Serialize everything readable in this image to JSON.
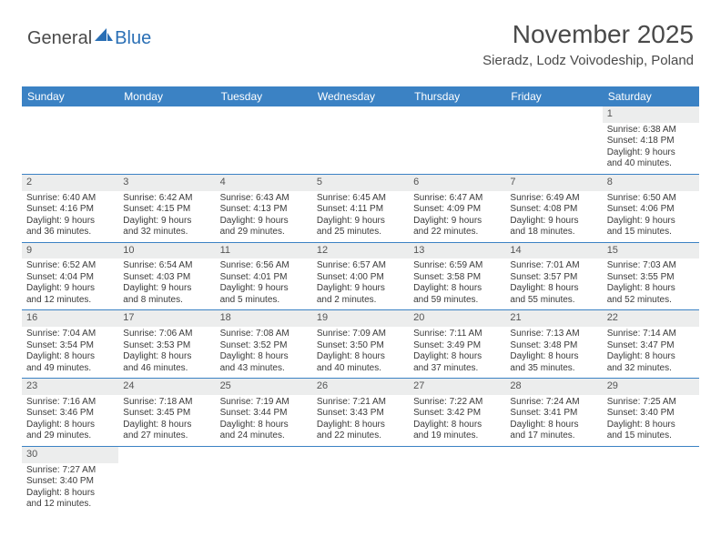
{
  "branding": {
    "logo_general": "General",
    "logo_blue": "Blue",
    "logo_color_text": "#4a4a4a",
    "logo_color_accent": "#2a6fb5"
  },
  "header": {
    "month_title": "November 2025",
    "location": "Sieradz, Lodz Voivodeship, Poland"
  },
  "style": {
    "header_bg": "#3b82c4",
    "header_fg": "#ffffff",
    "daynum_bg": "#eceded",
    "cell_text": "#3a3a3a",
    "border_color": "#3b82c4",
    "body_font_size": 10,
    "header_font_size": 12,
    "title_font_size": 28,
    "location_font_size": 15
  },
  "day_names": [
    "Sunday",
    "Monday",
    "Tuesday",
    "Wednesday",
    "Thursday",
    "Friday",
    "Saturday"
  ],
  "weeks": [
    [
      null,
      null,
      null,
      null,
      null,
      null,
      {
        "n": "1",
        "sunrise": "Sunrise: 6:38 AM",
        "sunset": "Sunset: 4:18 PM",
        "day1": "Daylight: 9 hours",
        "day2": "and 40 minutes."
      }
    ],
    [
      {
        "n": "2",
        "sunrise": "Sunrise: 6:40 AM",
        "sunset": "Sunset: 4:16 PM",
        "day1": "Daylight: 9 hours",
        "day2": "and 36 minutes."
      },
      {
        "n": "3",
        "sunrise": "Sunrise: 6:42 AM",
        "sunset": "Sunset: 4:15 PM",
        "day1": "Daylight: 9 hours",
        "day2": "and 32 minutes."
      },
      {
        "n": "4",
        "sunrise": "Sunrise: 6:43 AM",
        "sunset": "Sunset: 4:13 PM",
        "day1": "Daylight: 9 hours",
        "day2": "and 29 minutes."
      },
      {
        "n": "5",
        "sunrise": "Sunrise: 6:45 AM",
        "sunset": "Sunset: 4:11 PM",
        "day1": "Daylight: 9 hours",
        "day2": "and 25 minutes."
      },
      {
        "n": "6",
        "sunrise": "Sunrise: 6:47 AM",
        "sunset": "Sunset: 4:09 PM",
        "day1": "Daylight: 9 hours",
        "day2": "and 22 minutes."
      },
      {
        "n": "7",
        "sunrise": "Sunrise: 6:49 AM",
        "sunset": "Sunset: 4:08 PM",
        "day1": "Daylight: 9 hours",
        "day2": "and 18 minutes."
      },
      {
        "n": "8",
        "sunrise": "Sunrise: 6:50 AM",
        "sunset": "Sunset: 4:06 PM",
        "day1": "Daylight: 9 hours",
        "day2": "and 15 minutes."
      }
    ],
    [
      {
        "n": "9",
        "sunrise": "Sunrise: 6:52 AM",
        "sunset": "Sunset: 4:04 PM",
        "day1": "Daylight: 9 hours",
        "day2": "and 12 minutes."
      },
      {
        "n": "10",
        "sunrise": "Sunrise: 6:54 AM",
        "sunset": "Sunset: 4:03 PM",
        "day1": "Daylight: 9 hours",
        "day2": "and 8 minutes."
      },
      {
        "n": "11",
        "sunrise": "Sunrise: 6:56 AM",
        "sunset": "Sunset: 4:01 PM",
        "day1": "Daylight: 9 hours",
        "day2": "and 5 minutes."
      },
      {
        "n": "12",
        "sunrise": "Sunrise: 6:57 AM",
        "sunset": "Sunset: 4:00 PM",
        "day1": "Daylight: 9 hours",
        "day2": "and 2 minutes."
      },
      {
        "n": "13",
        "sunrise": "Sunrise: 6:59 AM",
        "sunset": "Sunset: 3:58 PM",
        "day1": "Daylight: 8 hours",
        "day2": "and 59 minutes."
      },
      {
        "n": "14",
        "sunrise": "Sunrise: 7:01 AM",
        "sunset": "Sunset: 3:57 PM",
        "day1": "Daylight: 8 hours",
        "day2": "and 55 minutes."
      },
      {
        "n": "15",
        "sunrise": "Sunrise: 7:03 AM",
        "sunset": "Sunset: 3:55 PM",
        "day1": "Daylight: 8 hours",
        "day2": "and 52 minutes."
      }
    ],
    [
      {
        "n": "16",
        "sunrise": "Sunrise: 7:04 AM",
        "sunset": "Sunset: 3:54 PM",
        "day1": "Daylight: 8 hours",
        "day2": "and 49 minutes."
      },
      {
        "n": "17",
        "sunrise": "Sunrise: 7:06 AM",
        "sunset": "Sunset: 3:53 PM",
        "day1": "Daylight: 8 hours",
        "day2": "and 46 minutes."
      },
      {
        "n": "18",
        "sunrise": "Sunrise: 7:08 AM",
        "sunset": "Sunset: 3:52 PM",
        "day1": "Daylight: 8 hours",
        "day2": "and 43 minutes."
      },
      {
        "n": "19",
        "sunrise": "Sunrise: 7:09 AM",
        "sunset": "Sunset: 3:50 PM",
        "day1": "Daylight: 8 hours",
        "day2": "and 40 minutes."
      },
      {
        "n": "20",
        "sunrise": "Sunrise: 7:11 AM",
        "sunset": "Sunset: 3:49 PM",
        "day1": "Daylight: 8 hours",
        "day2": "and 37 minutes."
      },
      {
        "n": "21",
        "sunrise": "Sunrise: 7:13 AM",
        "sunset": "Sunset: 3:48 PM",
        "day1": "Daylight: 8 hours",
        "day2": "and 35 minutes."
      },
      {
        "n": "22",
        "sunrise": "Sunrise: 7:14 AM",
        "sunset": "Sunset: 3:47 PM",
        "day1": "Daylight: 8 hours",
        "day2": "and 32 minutes."
      }
    ],
    [
      {
        "n": "23",
        "sunrise": "Sunrise: 7:16 AM",
        "sunset": "Sunset: 3:46 PM",
        "day1": "Daylight: 8 hours",
        "day2": "and 29 minutes."
      },
      {
        "n": "24",
        "sunrise": "Sunrise: 7:18 AM",
        "sunset": "Sunset: 3:45 PM",
        "day1": "Daylight: 8 hours",
        "day2": "and 27 minutes."
      },
      {
        "n": "25",
        "sunrise": "Sunrise: 7:19 AM",
        "sunset": "Sunset: 3:44 PM",
        "day1": "Daylight: 8 hours",
        "day2": "and 24 minutes."
      },
      {
        "n": "26",
        "sunrise": "Sunrise: 7:21 AM",
        "sunset": "Sunset: 3:43 PM",
        "day1": "Daylight: 8 hours",
        "day2": "and 22 minutes."
      },
      {
        "n": "27",
        "sunrise": "Sunrise: 7:22 AM",
        "sunset": "Sunset: 3:42 PM",
        "day1": "Daylight: 8 hours",
        "day2": "and 19 minutes."
      },
      {
        "n": "28",
        "sunrise": "Sunrise: 7:24 AM",
        "sunset": "Sunset: 3:41 PM",
        "day1": "Daylight: 8 hours",
        "day2": "and 17 minutes."
      },
      {
        "n": "29",
        "sunrise": "Sunrise: 7:25 AM",
        "sunset": "Sunset: 3:40 PM",
        "day1": "Daylight: 8 hours",
        "day2": "and 15 minutes."
      }
    ],
    [
      {
        "n": "30",
        "sunrise": "Sunrise: 7:27 AM",
        "sunset": "Sunset: 3:40 PM",
        "day1": "Daylight: 8 hours",
        "day2": "and 12 minutes."
      },
      null,
      null,
      null,
      null,
      null,
      null
    ]
  ]
}
